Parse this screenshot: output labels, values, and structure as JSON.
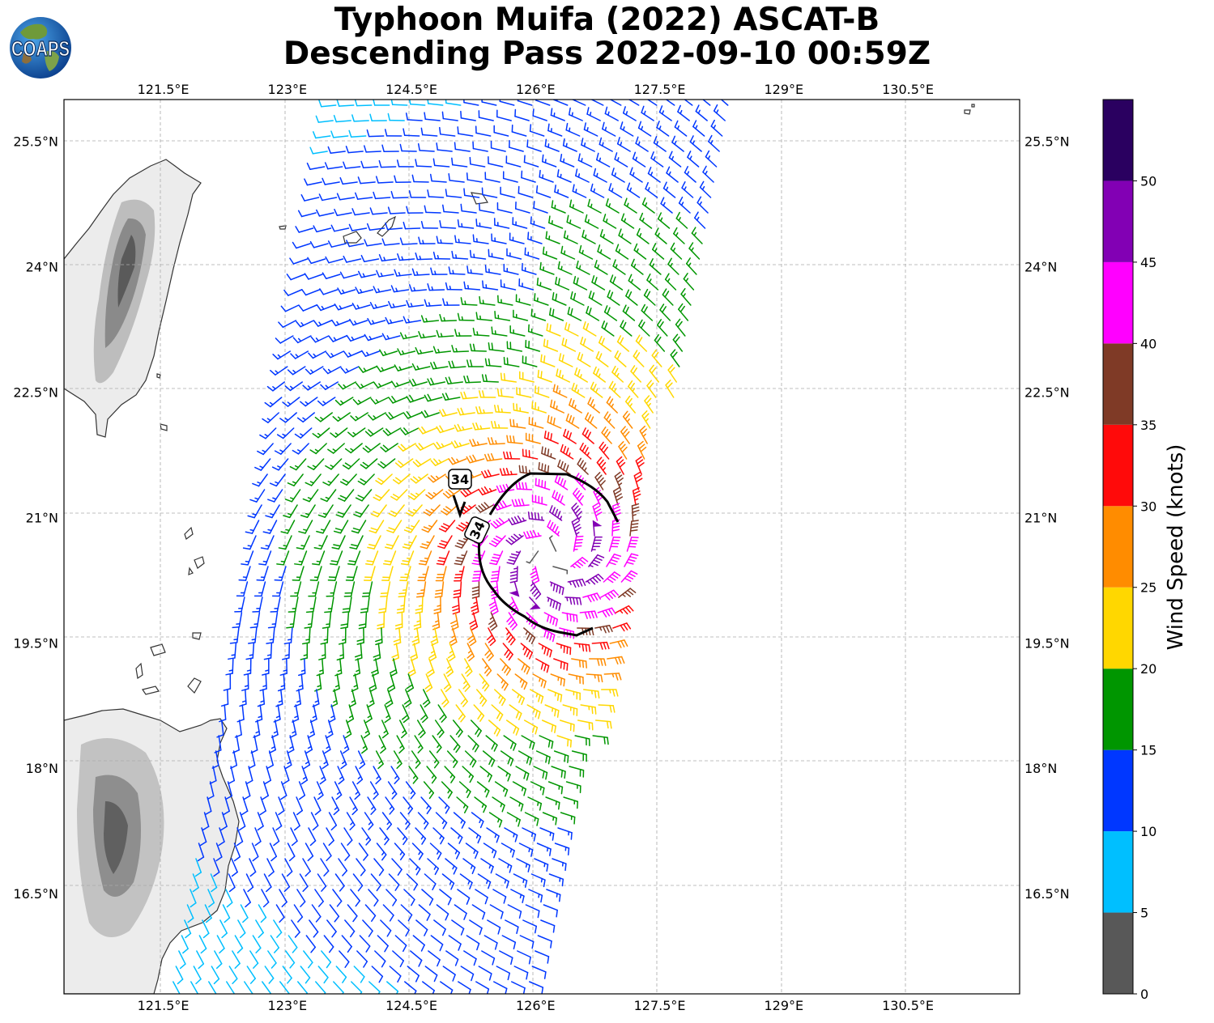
{
  "header": {
    "logo_text": "COAPS",
    "title_line1": "Typhoon Muifa (2022) ASCAT-B",
    "title_line2": "Descending Pass 2022-09-10 00:59Z"
  },
  "map": {
    "lon_ticks": [
      "121.5°E",
      "123°E",
      "124.5°E",
      "126°E",
      "127.5°E",
      "129°E",
      "130.5°E"
    ],
    "lat_ticks": [
      "25.5°N",
      "24°N",
      "22.5°N",
      "21°N",
      "19.5°N",
      "18°N",
      "16.5°N"
    ],
    "lon_values": [
      121.5,
      123,
      124.5,
      126,
      127.5,
      129,
      130.5
    ],
    "lat_values": [
      25.5,
      24,
      22.5,
      21,
      19.5,
      18,
      16.5
    ],
    "extent": {
      "lon_min": 120.3,
      "lon_max": 131.85,
      "lat_min": 15.3,
      "lat_max": 26.0
    },
    "gridlines": "dashed",
    "storm_center": {
      "lon": 126.2,
      "lat": 20.55
    },
    "contour_label": "34",
    "contour_labels": [
      "34",
      "34"
    ],
    "land": [
      "Taiwan",
      "Luzon"
    ]
  },
  "colorbar": {
    "label": "Wind Speed (knots)",
    "tick_labels": [
      "0",
      "5",
      "10",
      "15",
      "20",
      "25",
      "30",
      "35",
      "40",
      "45",
      "50"
    ],
    "bins": [
      {
        "from": 0,
        "to": 5,
        "color": "#585858"
      },
      {
        "from": 5,
        "to": 10,
        "color": "#00bfff"
      },
      {
        "from": 10,
        "to": 15,
        "color": "#0037ff"
      },
      {
        "from": 15,
        "to": 20,
        "color": "#009600"
      },
      {
        "from": 20,
        "to": 25,
        "color": "#ffd700"
      },
      {
        "from": 25,
        "to": 30,
        "color": "#ff8c00"
      },
      {
        "from": 30,
        "to": 35,
        "color": "#ff0a0a"
      },
      {
        "from": 35,
        "to": 40,
        "color": "#7f3a26"
      },
      {
        "from": 40,
        "to": 45,
        "color": "#ff00ff"
      },
      {
        "from": 45,
        "to": 50,
        "color": "#8200b4"
      },
      {
        "from": 50,
        "to": 55,
        "color": "#2a0060"
      }
    ]
  }
}
